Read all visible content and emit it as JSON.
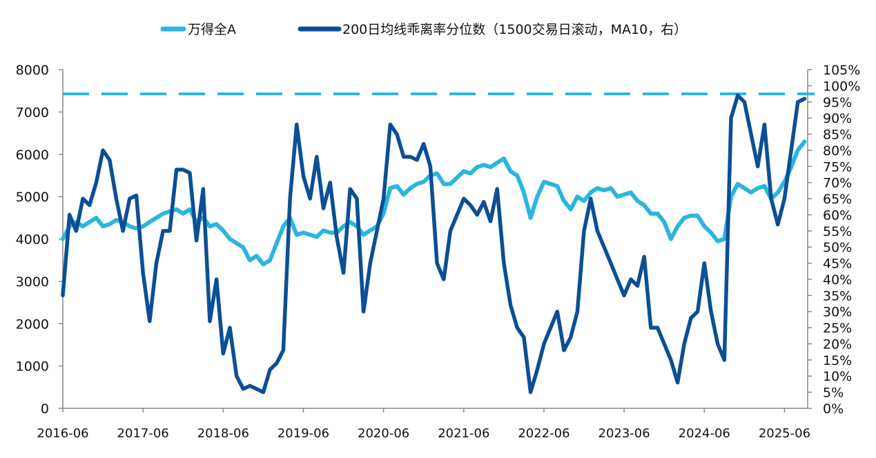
{
  "chart_data": {
    "type": "line",
    "title": "",
    "legend_position": "top",
    "grid": false,
    "x": [
      "2016-06",
      "2016-07",
      "2016-08",
      "2016-09",
      "2016-10",
      "2016-11",
      "2016-12",
      "2017-01",
      "2017-02",
      "2017-03",
      "2017-04",
      "2017-05",
      "2017-06",
      "2017-07",
      "2017-08",
      "2017-09",
      "2017-10",
      "2017-11",
      "2017-12",
      "2018-01",
      "2018-02",
      "2018-03",
      "2018-04",
      "2018-05",
      "2018-06",
      "2018-07",
      "2018-08",
      "2018-09",
      "2018-10",
      "2018-11",
      "2018-12",
      "2019-01",
      "2019-02",
      "2019-03",
      "2019-04",
      "2019-05",
      "2019-06",
      "2019-07",
      "2019-08",
      "2019-09",
      "2019-10",
      "2019-11",
      "2019-12",
      "2020-01",
      "2020-02",
      "2020-03",
      "2020-04",
      "2020-05",
      "2020-06",
      "2020-07",
      "2020-08",
      "2020-09",
      "2020-10",
      "2020-11",
      "2020-12",
      "2021-01",
      "2021-02",
      "2021-03",
      "2021-04",
      "2021-05",
      "2021-06",
      "2021-07",
      "2021-08",
      "2021-09",
      "2021-10",
      "2021-11",
      "2021-12",
      "2022-01",
      "2022-02",
      "2022-03",
      "2022-04",
      "2022-05",
      "2022-06",
      "2022-07",
      "2022-08",
      "2022-09",
      "2022-10",
      "2022-11",
      "2022-12",
      "2023-01",
      "2023-02",
      "2023-03",
      "2023-04",
      "2023-05",
      "2023-06",
      "2023-07",
      "2023-08",
      "2023-09",
      "2023-10",
      "2023-11",
      "2023-12",
      "2024-01",
      "2024-02",
      "2024-03",
      "2024-04",
      "2024-05",
      "2024-06",
      "2024-07",
      "2024-08",
      "2024-09",
      "2024-10",
      "2024-11",
      "2024-12",
      "2025-01",
      "2025-02",
      "2025-03",
      "2025-04",
      "2025-05",
      "2025-06",
      "2025-07",
      "2025-08",
      "2025-09"
    ],
    "x_ticks": [
      "2016-06",
      "2017-06",
      "2018-06",
      "2019-06",
      "2020-06",
      "2021-06",
      "2022-06",
      "2023-06",
      "2024-06",
      "2025-06"
    ],
    "y_left": {
      "range": [
        0,
        8000
      ],
      "ticks": [
        "0",
        "1000",
        "2000",
        "3000",
        "4000",
        "5000",
        "6000",
        "7000",
        "8000"
      ]
    },
    "y_right": {
      "range": [
        0,
        105
      ],
      "unit": "%",
      "ticks": [
        "0%",
        "5%",
        "10%",
        "15%",
        "20%",
        "25%",
        "30%",
        "35%",
        "40%",
        "45%",
        "50%",
        "55%",
        "60%",
        "65%",
        "70%",
        "75%",
        "80%",
        "85%",
        "90%",
        "95%",
        "100%",
        "105%"
      ]
    },
    "series": [
      {
        "name": "万得全A",
        "axis": "left",
        "color": "#2bb5e0",
        "values": [
          4000,
          4300,
          4400,
          4300,
          4400,
          4500,
          4300,
          4350,
          4450,
          4400,
          4300,
          4250,
          4300,
          4400,
          4500,
          4600,
          4650,
          4700,
          4600,
          4700,
          4400,
          4500,
          4300,
          4350,
          4200,
          4000,
          3900,
          3800,
          3500,
          3600,
          3400,
          3500,
          3900,
          4300,
          4500,
          4100,
          4150,
          4100,
          4050,
          4200,
          4150,
          4150,
          4300,
          4400,
          4300,
          4100,
          4200,
          4300,
          4600,
          5200,
          5250,
          5050,
          5200,
          5300,
          5350,
          5500,
          5550,
          5300,
          5300,
          5450,
          5600,
          5550,
          5700,
          5750,
          5700,
          5800,
          5900,
          5600,
          5500,
          5100,
          4500,
          5000,
          5350,
          5300,
          5250,
          4900,
          4700,
          5000,
          4900,
          5100,
          5200,
          5150,
          5200,
          5000,
          5050,
          5100,
          4900,
          4800,
          4600,
          4600,
          4400,
          4000,
          4300,
          4500,
          4550,
          4550,
          4300,
          4150,
          3950,
          4000,
          5000,
          5300,
          5200,
          5100,
          5200,
          5250,
          4950,
          5100,
          5350,
          5700,
          6100,
          6300
        ]
      },
      {
        "name": "200日均线乖离率分位数（1500交易日滚动，MA10，右）",
        "axis": "right",
        "color": "#0b4f96",
        "values": [
          35,
          60,
          55,
          65,
          63,
          70,
          80,
          77,
          65,
          55,
          65,
          66,
          42,
          27,
          45,
          55,
          55,
          74,
          74,
          73,
          52,
          68,
          27,
          40,
          17,
          25,
          10,
          6,
          7,
          6,
          5,
          12,
          14,
          18,
          65,
          88,
          72,
          65,
          78,
          62,
          70,
          53,
          42,
          68,
          65,
          30,
          45,
          55,
          65,
          88,
          85,
          78,
          78,
          77,
          82,
          75,
          45,
          40,
          55,
          60,
          65,
          63,
          60,
          64,
          58,
          68,
          45,
          32,
          25,
          22,
          5,
          12,
          20,
          25,
          30,
          18,
          22,
          30,
          55,
          65,
          55,
          50,
          45,
          40,
          35,
          40,
          38,
          47,
          25,
          25,
          20,
          15,
          8,
          20,
          28,
          30,
          45,
          30,
          20,
          15,
          90,
          97,
          95,
          85,
          75,
          88,
          65,
          57,
          65,
          80,
          95,
          96
        ]
      }
    ],
    "reference_line": {
      "axis": "right",
      "value": 97.5,
      "style": "dashed",
      "color": "#2bb5e0"
    }
  }
}
